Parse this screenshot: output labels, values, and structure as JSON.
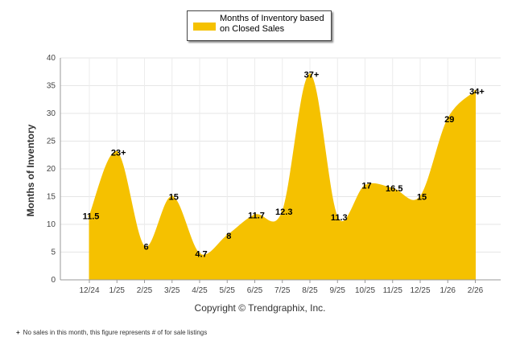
{
  "chart_data": {
    "type": "area",
    "series": [
      {
        "name": "Months of Inventory based on Closed Sales",
        "values": [
          11.5,
          23,
          6,
          15,
          4.7,
          8,
          11.7,
          12.3,
          37,
          11.3,
          17,
          16.5,
          15,
          29,
          34
        ],
        "labels": [
          "11.5",
          "23+",
          "6",
          "15",
          "4.7",
          "8",
          "11.7",
          "12.3",
          "37+",
          "11.3",
          "17",
          "16.5",
          "15",
          "29",
          "34+"
        ]
      }
    ],
    "categories": [
      "12/24",
      "1/25",
      "2/25",
      "3/25",
      "4/25",
      "5/25",
      "6/25",
      "7/25",
      "8/25",
      "9/25",
      "10/25",
      "11/25",
      "12/25",
      "1/26",
      "2/26"
    ],
    "ylabel": "Months of Inventory",
    "xlabel": "",
    "ylim": [
      0,
      40
    ],
    "yticks": [
      0,
      5,
      10,
      15,
      20,
      25,
      30,
      35,
      40
    ],
    "legend": "top-center",
    "grid": true,
    "color": "#f5c100"
  },
  "legend_label": "Months of Inventory based on Closed Sales",
  "copyright": "Copyright © Trendgraphix, Inc.",
  "footnote": {
    "mark": "+",
    "text": "No sales in this month, this figure represents # of for sale listings"
  }
}
